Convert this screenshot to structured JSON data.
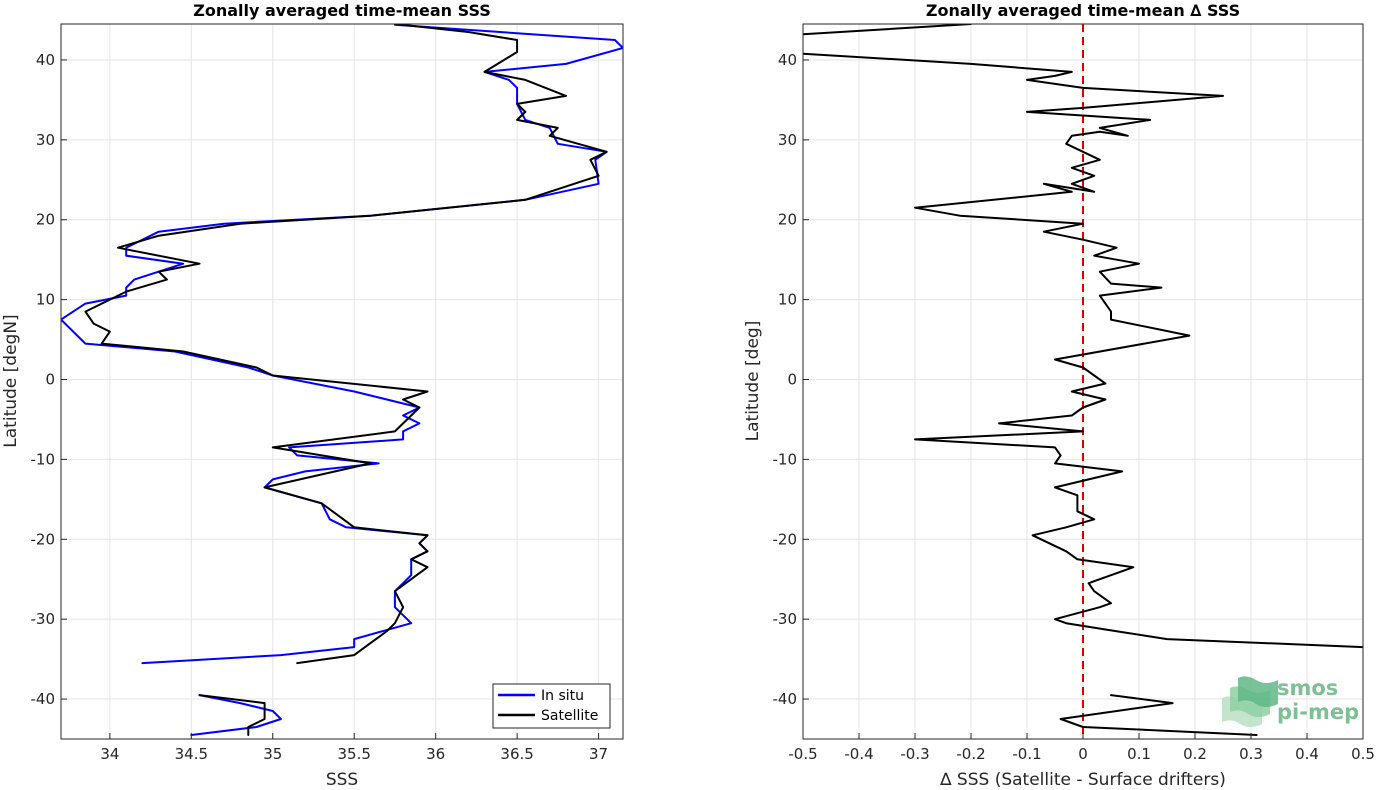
{
  "chart_data": [
    {
      "type": "line",
      "title": "Zonally averaged time-mean SSS",
      "xlabel": "SSS",
      "ylabel": "Latitude [degN]",
      "xlim": [
        33.7,
        37.15
      ],
      "ylim": [
        -45,
        44.5
      ],
      "xticks": [
        34,
        34.5,
        35,
        35.5,
        36,
        36.5,
        37
      ],
      "xticklabels": [
        "34",
        "34.5",
        "35",
        "35.5",
        "36",
        "36.5",
        "37"
      ],
      "yticks": [
        -40,
        -30,
        -20,
        -10,
        0,
        10,
        20,
        30,
        40
      ],
      "yticklabels": [
        "-40",
        "-30",
        "-20",
        "-10",
        "0",
        "10",
        "20",
        "30",
        "40"
      ],
      "grid": true,
      "legend": "bottom-right",
      "series": [
        {
          "name": "In situ",
          "color": "#0000ff",
          "segments": [
            [
              [
                35.75,
                44.4
              ],
              [
                37.1,
                42.5
              ],
              [
                37.15,
                41.5
              ],
              [
                36.8,
                39.5
              ],
              [
                36.3,
                38.5
              ],
              [
                36.45,
                37.5
              ],
              [
                36.5,
                36.5
              ],
              [
                36.5,
                34.5
              ],
              [
                36.55,
                32.5
              ],
              [
                36.7,
                31.5
              ],
              [
                36.75,
                29.5
              ],
              [
                37.05,
                28.5
              ],
              [
                36.98,
                27.5
              ],
              [
                37.0,
                24.5
              ],
              [
                36.55,
                22.5
              ],
              [
                35.6,
                20.5
              ],
              [
                34.7,
                19.5
              ],
              [
                34.3,
                18.5
              ],
              [
                34.1,
                16.5
              ],
              [
                34.1,
                15.5
              ],
              [
                34.45,
                14.5
              ],
              [
                34.15,
                12.5
              ],
              [
                34.1,
                11.5
              ],
              [
                34.1,
                10.5
              ],
              [
                33.85,
                9.5
              ],
              [
                33.7,
                7.5
              ],
              [
                33.85,
                4.5
              ],
              [
                34.4,
                3.5
              ],
              [
                34.85,
                1.5
              ],
              [
                35.0,
                0.5
              ],
              [
                35.5,
                -1.5
              ],
              [
                35.7,
                -2.5
              ],
              [
                35.9,
                -3.5
              ],
              [
                35.8,
                -4.5
              ],
              [
                35.9,
                -5.5
              ],
              [
                35.8,
                -6.5
              ],
              [
                35.8,
                -7.5
              ],
              [
                35.1,
                -8.5
              ],
              [
                35.15,
                -9.5
              ],
              [
                35.65,
                -10.5
              ],
              [
                35.2,
                -11.5
              ],
              [
                35.0,
                -12.5
              ],
              [
                34.95,
                -13.5
              ],
              [
                35.3,
                -15.5
              ],
              [
                35.35,
                -17.5
              ],
              [
                35.45,
                -18.5
              ],
              [
                35.95,
                -19.5
              ],
              [
                35.9,
                -20.5
              ],
              [
                35.95,
                -21.5
              ],
              [
                35.85,
                -22.5
              ],
              [
                35.85,
                -24.5
              ],
              [
                35.75,
                -26.5
              ],
              [
                35.75,
                -28.5
              ],
              [
                35.85,
                -30.5
              ],
              [
                35.5,
                -32.5
              ],
              [
                35.5,
                -33.5
              ],
              [
                35.05,
                -34.5
              ],
              [
                34.2,
                -35.5
              ]
            ],
            [
              [
                34.55,
                -39.5
              ],
              [
                34.8,
                -40.5
              ],
              [
                35.0,
                -41.5
              ],
              [
                35.05,
                -42.5
              ],
              [
                34.9,
                -43.5
              ],
              [
                34.5,
                -44.5
              ]
            ]
          ]
        },
        {
          "name": "Satellite",
          "color": "#000000",
          "segments": [
            [
              [
                35.75,
                44.5
              ],
              [
                36.2,
                43.5
              ],
              [
                36.5,
                42.5
              ],
              [
                36.5,
                41.0
              ],
              [
                36.3,
                38.5
              ],
              [
                36.55,
                37.5
              ],
              [
                36.8,
                35.5
              ],
              [
                36.5,
                34.5
              ],
              [
                36.55,
                33.5
              ],
              [
                36.5,
                32.5
              ],
              [
                36.75,
                31.5
              ],
              [
                36.7,
                30.5
              ],
              [
                37.05,
                28.5
              ],
              [
                36.95,
                27.5
              ],
              [
                37.0,
                25.5
              ],
              [
                36.55,
                22.5
              ],
              [
                35.6,
                20.5
              ],
              [
                34.8,
                19.5
              ],
              [
                34.3,
                18.0
              ],
              [
                34.05,
                16.5
              ],
              [
                34.55,
                14.5
              ],
              [
                34.3,
                13.5
              ],
              [
                34.35,
                12.5
              ],
              [
                34.1,
                11.0
              ],
              [
                33.85,
                8.5
              ],
              [
                33.9,
                7.0
              ],
              [
                34.0,
                6.0
              ],
              [
                33.95,
                4.5
              ],
              [
                34.45,
                3.5
              ],
              [
                34.9,
                1.5
              ],
              [
                35.0,
                0.5
              ],
              [
                35.95,
                -1.5
              ],
              [
                35.8,
                -2.5
              ],
              [
                35.9,
                -3.5
              ],
              [
                35.75,
                -6.5
              ],
              [
                35.0,
                -8.5
              ],
              [
                35.6,
                -10.5
              ],
              [
                34.95,
                -13.5
              ],
              [
                35.3,
                -15.5
              ],
              [
                35.5,
                -18.5
              ],
              [
                35.95,
                -19.5
              ],
              [
                35.9,
                -20.5
              ],
              [
                35.95,
                -21.5
              ],
              [
                35.85,
                -22.5
              ],
              [
                35.95,
                -23.5
              ],
              [
                35.75,
                -26.5
              ],
              [
                35.8,
                -28.5
              ],
              [
                35.75,
                -30.5
              ],
              [
                35.7,
                -31.5
              ],
              [
                35.6,
                -33.0
              ],
              [
                35.5,
                -34.5
              ],
              [
                35.15,
                -35.5
              ]
            ],
            [
              [
                34.55,
                -39.5
              ],
              [
                34.95,
                -40.5
              ],
              [
                34.95,
                -41.5
              ],
              [
                34.95,
                -42.5
              ],
              [
                34.85,
                -43.5
              ],
              [
                34.85,
                -44.5
              ]
            ]
          ]
        }
      ]
    },
    {
      "type": "line",
      "title": "Zonally averaged time-mean ∆ SSS",
      "xlabel": "∆ SSS (Satellite - Surface drifters)",
      "ylabel": "Latitude [deg]",
      "xlim": [
        -0.5,
        0.5
      ],
      "ylim": [
        -45,
        44.5
      ],
      "xticks": [
        -0.5,
        -0.4,
        -0.3,
        -0.2,
        -0.1,
        0,
        0.1,
        0.2,
        0.3,
        0.4,
        0.5
      ],
      "xticklabels": [
        "-0.5",
        "-0.4",
        "-0.3",
        "-0.2",
        "-0.1",
        "0",
        "0.1",
        "0.2",
        "0.3",
        "0.4",
        "0.5"
      ],
      "yticks": [
        -40,
        -30,
        -20,
        -10,
        0,
        10,
        20,
        30,
        40
      ],
      "yticklabels": [
        "-40",
        "-30",
        "-20",
        "-10",
        "0",
        "10",
        "20",
        "30",
        "40"
      ],
      "grid": true,
      "reference_line": {
        "x": 0,
        "color": "#dd0000",
        "style": "dashed"
      },
      "series": [
        {
          "color": "#000000",
          "segments": [
            [
              [
                -0.2,
                44.5
              ],
              [
                -0.55,
                43.0
              ]
            ],
            [
              [
                -0.55,
                41.0
              ],
              [
                -0.2,
                39.5
              ],
              [
                -0.02,
                38.5
              ],
              [
                -0.05,
                38.0
              ],
              [
                -0.1,
                37.5
              ],
              [
                0.0,
                36.5
              ],
              [
                0.25,
                35.5
              ],
              [
                0.0,
                34.0
              ],
              [
                -0.1,
                33.5
              ],
              [
                0.12,
                32.5
              ],
              [
                0.03,
                31.5
              ],
              [
                0.08,
                30.5
              ],
              [
                0.03,
                31.0
              ],
              [
                -0.02,
                30.5
              ],
              [
                -0.03,
                29.5
              ],
              [
                0.03,
                27.5
              ],
              [
                -0.02,
                26.5
              ],
              [
                0.02,
                25.5
              ],
              [
                -0.02,
                24.5
              ],
              [
                0.02,
                23.5
              ],
              [
                -0.07,
                24.5
              ],
              [
                -0.02,
                23.5
              ],
              [
                -0.3,
                21.5
              ],
              [
                -0.22,
                20.5
              ],
              [
                0.0,
                19.5
              ],
              [
                -0.07,
                18.5
              ],
              [
                0.0,
                17.5
              ],
              [
                0.06,
                16.5
              ],
              [
                0.02,
                15.5
              ],
              [
                0.1,
                14.5
              ],
              [
                0.03,
                13.5
              ],
              [
                0.05,
                12.0
              ],
              [
                0.14,
                11.5
              ],
              [
                0.03,
                10.5
              ],
              [
                0.05,
                8.5
              ],
              [
                0.05,
                7.5
              ],
              [
                0.19,
                5.5
              ],
              [
                -0.05,
                2.5
              ],
              [
                0.0,
                1.5
              ],
              [
                0.04,
                -0.5
              ],
              [
                -0.02,
                -1.5
              ],
              [
                0.04,
                -2.5
              ],
              [
                0.0,
                -3.5
              ],
              [
                -0.02,
                -4.5
              ],
              [
                -0.15,
                -5.5
              ],
              [
                0.0,
                -6.5
              ],
              [
                -0.3,
                -7.5
              ],
              [
                -0.05,
                -8.5
              ],
              [
                -0.04,
                -9.5
              ],
              [
                -0.05,
                -10.5
              ],
              [
                0.07,
                -11.5
              ],
              [
                -0.05,
                -13.5
              ],
              [
                -0.01,
                -14.5
              ],
              [
                -0.01,
                -16.5
              ],
              [
                0.02,
                -17.5
              ],
              [
                -0.03,
                -18.5
              ],
              [
                -0.09,
                -19.5
              ],
              [
                -0.03,
                -21.5
              ],
              [
                -0.01,
                -22.5
              ],
              [
                0.09,
                -23.5
              ],
              [
                0.01,
                -25.5
              ],
              [
                0.02,
                -26.5
              ],
              [
                0.05,
                -28.0
              ],
              [
                0.03,
                -28.5
              ],
              [
                -0.05,
                -30.0
              ],
              [
                -0.03,
                -30.5
              ],
              [
                0.06,
                -31.5
              ],
              [
                0.15,
                -32.5
              ],
              [
                0.5,
                -33.5
              ],
              [
                0.52,
                -34.5
              ]
            ],
            [
              [
                0.05,
                -39.5
              ],
              [
                0.16,
                -40.5
              ],
              [
                -0.04,
                -42.5
              ],
              [
                0.0,
                -43.5
              ],
              [
                0.31,
                -44.5
              ]
            ]
          ]
        }
      ]
    }
  ],
  "legend": {
    "entries": [
      "In situ",
      "Satellite"
    ]
  },
  "logo": {
    "line1": "smos",
    "line2": "pi-mep"
  }
}
